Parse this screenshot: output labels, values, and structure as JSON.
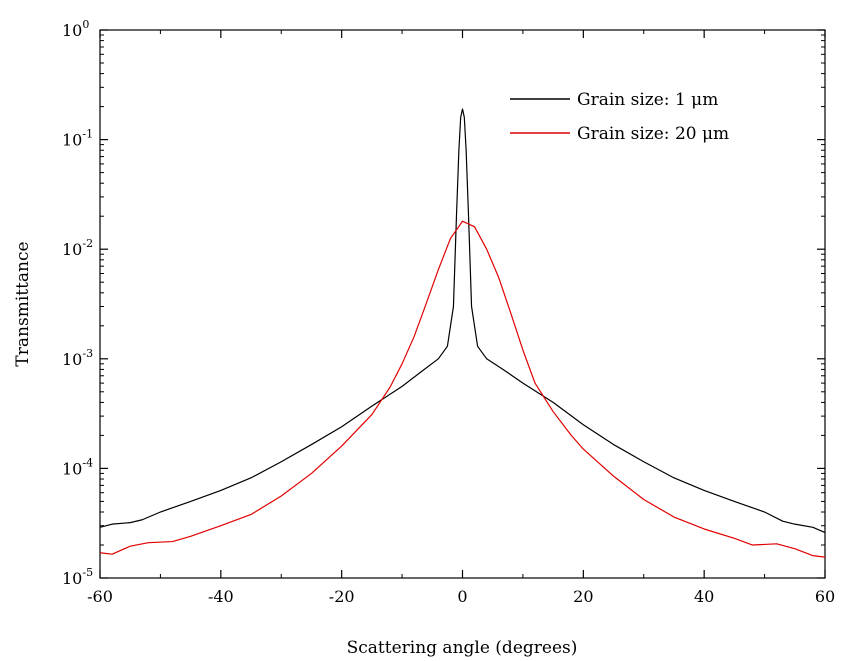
{
  "chart_data": {
    "type": "line",
    "xlabel": "Scattering angle (degrees)",
    "ylabel": "Transmittance",
    "xlim": [
      -60,
      60
    ],
    "ylim": [
      1e-05,
      1
    ],
    "yscale": "log",
    "x_ticks": [
      -60,
      -40,
      -20,
      0,
      20,
      40,
      60
    ],
    "y_tick_exponents": [
      -5,
      -4,
      -3,
      -2,
      -1,
      0
    ],
    "y_tick_base": "10",
    "grid": false,
    "legend_position": "top-right",
    "series": [
      {
        "name": "Grain size: 1 μm",
        "color": "#000000",
        "points": [
          [
            -60,
            2.9e-05
          ],
          [
            -58,
            3.1e-05
          ],
          [
            -55,
            3.2e-05
          ],
          [
            -53,
            3.4e-05
          ],
          [
            -50,
            4e-05
          ],
          [
            -45,
            5e-05
          ],
          [
            -40,
            6.3e-05
          ],
          [
            -35,
            8.2e-05
          ],
          [
            -30,
            0.000115
          ],
          [
            -25,
            0.000165
          ],
          [
            -20,
            0.00024
          ],
          [
            -15,
            0.00037
          ],
          [
            -10,
            0.00056
          ],
          [
            -7,
            0.00075
          ],
          [
            -4,
            0.001
          ],
          [
            -2.5,
            0.0013
          ],
          [
            -1.5,
            0.003
          ],
          [
            -1,
            0.02
          ],
          [
            -0.6,
            0.08
          ],
          [
            -0.3,
            0.16
          ],
          [
            0,
            0.19
          ],
          [
            0.3,
            0.16
          ],
          [
            0.6,
            0.08
          ],
          [
            1,
            0.02
          ],
          [
            1.5,
            0.003
          ],
          [
            2.5,
            0.0013
          ],
          [
            4,
            0.001
          ],
          [
            7,
            0.00078
          ],
          [
            10,
            0.0006
          ],
          [
            15,
            0.0004
          ],
          [
            20,
            0.00025
          ],
          [
            25,
            0.000165
          ],
          [
            30,
            0.000115
          ],
          [
            35,
            8.2e-05
          ],
          [
            40,
            6.3e-05
          ],
          [
            45,
            5e-05
          ],
          [
            50,
            4e-05
          ],
          [
            53,
            3.3e-05
          ],
          [
            55,
            3.1e-05
          ],
          [
            58,
            2.9e-05
          ],
          [
            60,
            2.6e-05
          ]
        ]
      },
      {
        "name": "Grain size: 20 μm",
        "color": "#e00000",
        "points": [
          [
            -60,
            1.7e-05
          ],
          [
            -58,
            1.65e-05
          ],
          [
            -55,
            1.95e-05
          ],
          [
            -52,
            2.1e-05
          ],
          [
            -48,
            2.15e-05
          ],
          [
            -45,
            2.4e-05
          ],
          [
            -40,
            3e-05
          ],
          [
            -35,
            3.8e-05
          ],
          [
            -30,
            5.6e-05
          ],
          [
            -25,
            9e-05
          ],
          [
            -20,
            0.00016
          ],
          [
            -15,
            0.00031
          ],
          [
            -12,
            0.00055
          ],
          [
            -10,
            0.0009
          ],
          [
            -8,
            0.0016
          ],
          [
            -6,
            0.0032
          ],
          [
            -4,
            0.0065
          ],
          [
            -2,
            0.0125
          ],
          [
            0,
            0.018
          ],
          [
            2,
            0.016
          ],
          [
            4,
            0.01
          ],
          [
            6,
            0.0055
          ],
          [
            8,
            0.0026
          ],
          [
            10,
            0.0012
          ],
          [
            12,
            0.0006
          ],
          [
            15,
            0.00033
          ],
          [
            18,
            0.0002
          ],
          [
            20,
            0.00015
          ],
          [
            25,
            8.5e-05
          ],
          [
            30,
            5.2e-05
          ],
          [
            35,
            3.6e-05
          ],
          [
            40,
            2.8e-05
          ],
          [
            45,
            2.3e-05
          ],
          [
            48,
            2e-05
          ],
          [
            52,
            2.05e-05
          ],
          [
            55,
            1.85e-05
          ],
          [
            58,
            1.6e-05
          ],
          [
            60,
            1.55e-05
          ]
        ]
      }
    ]
  }
}
